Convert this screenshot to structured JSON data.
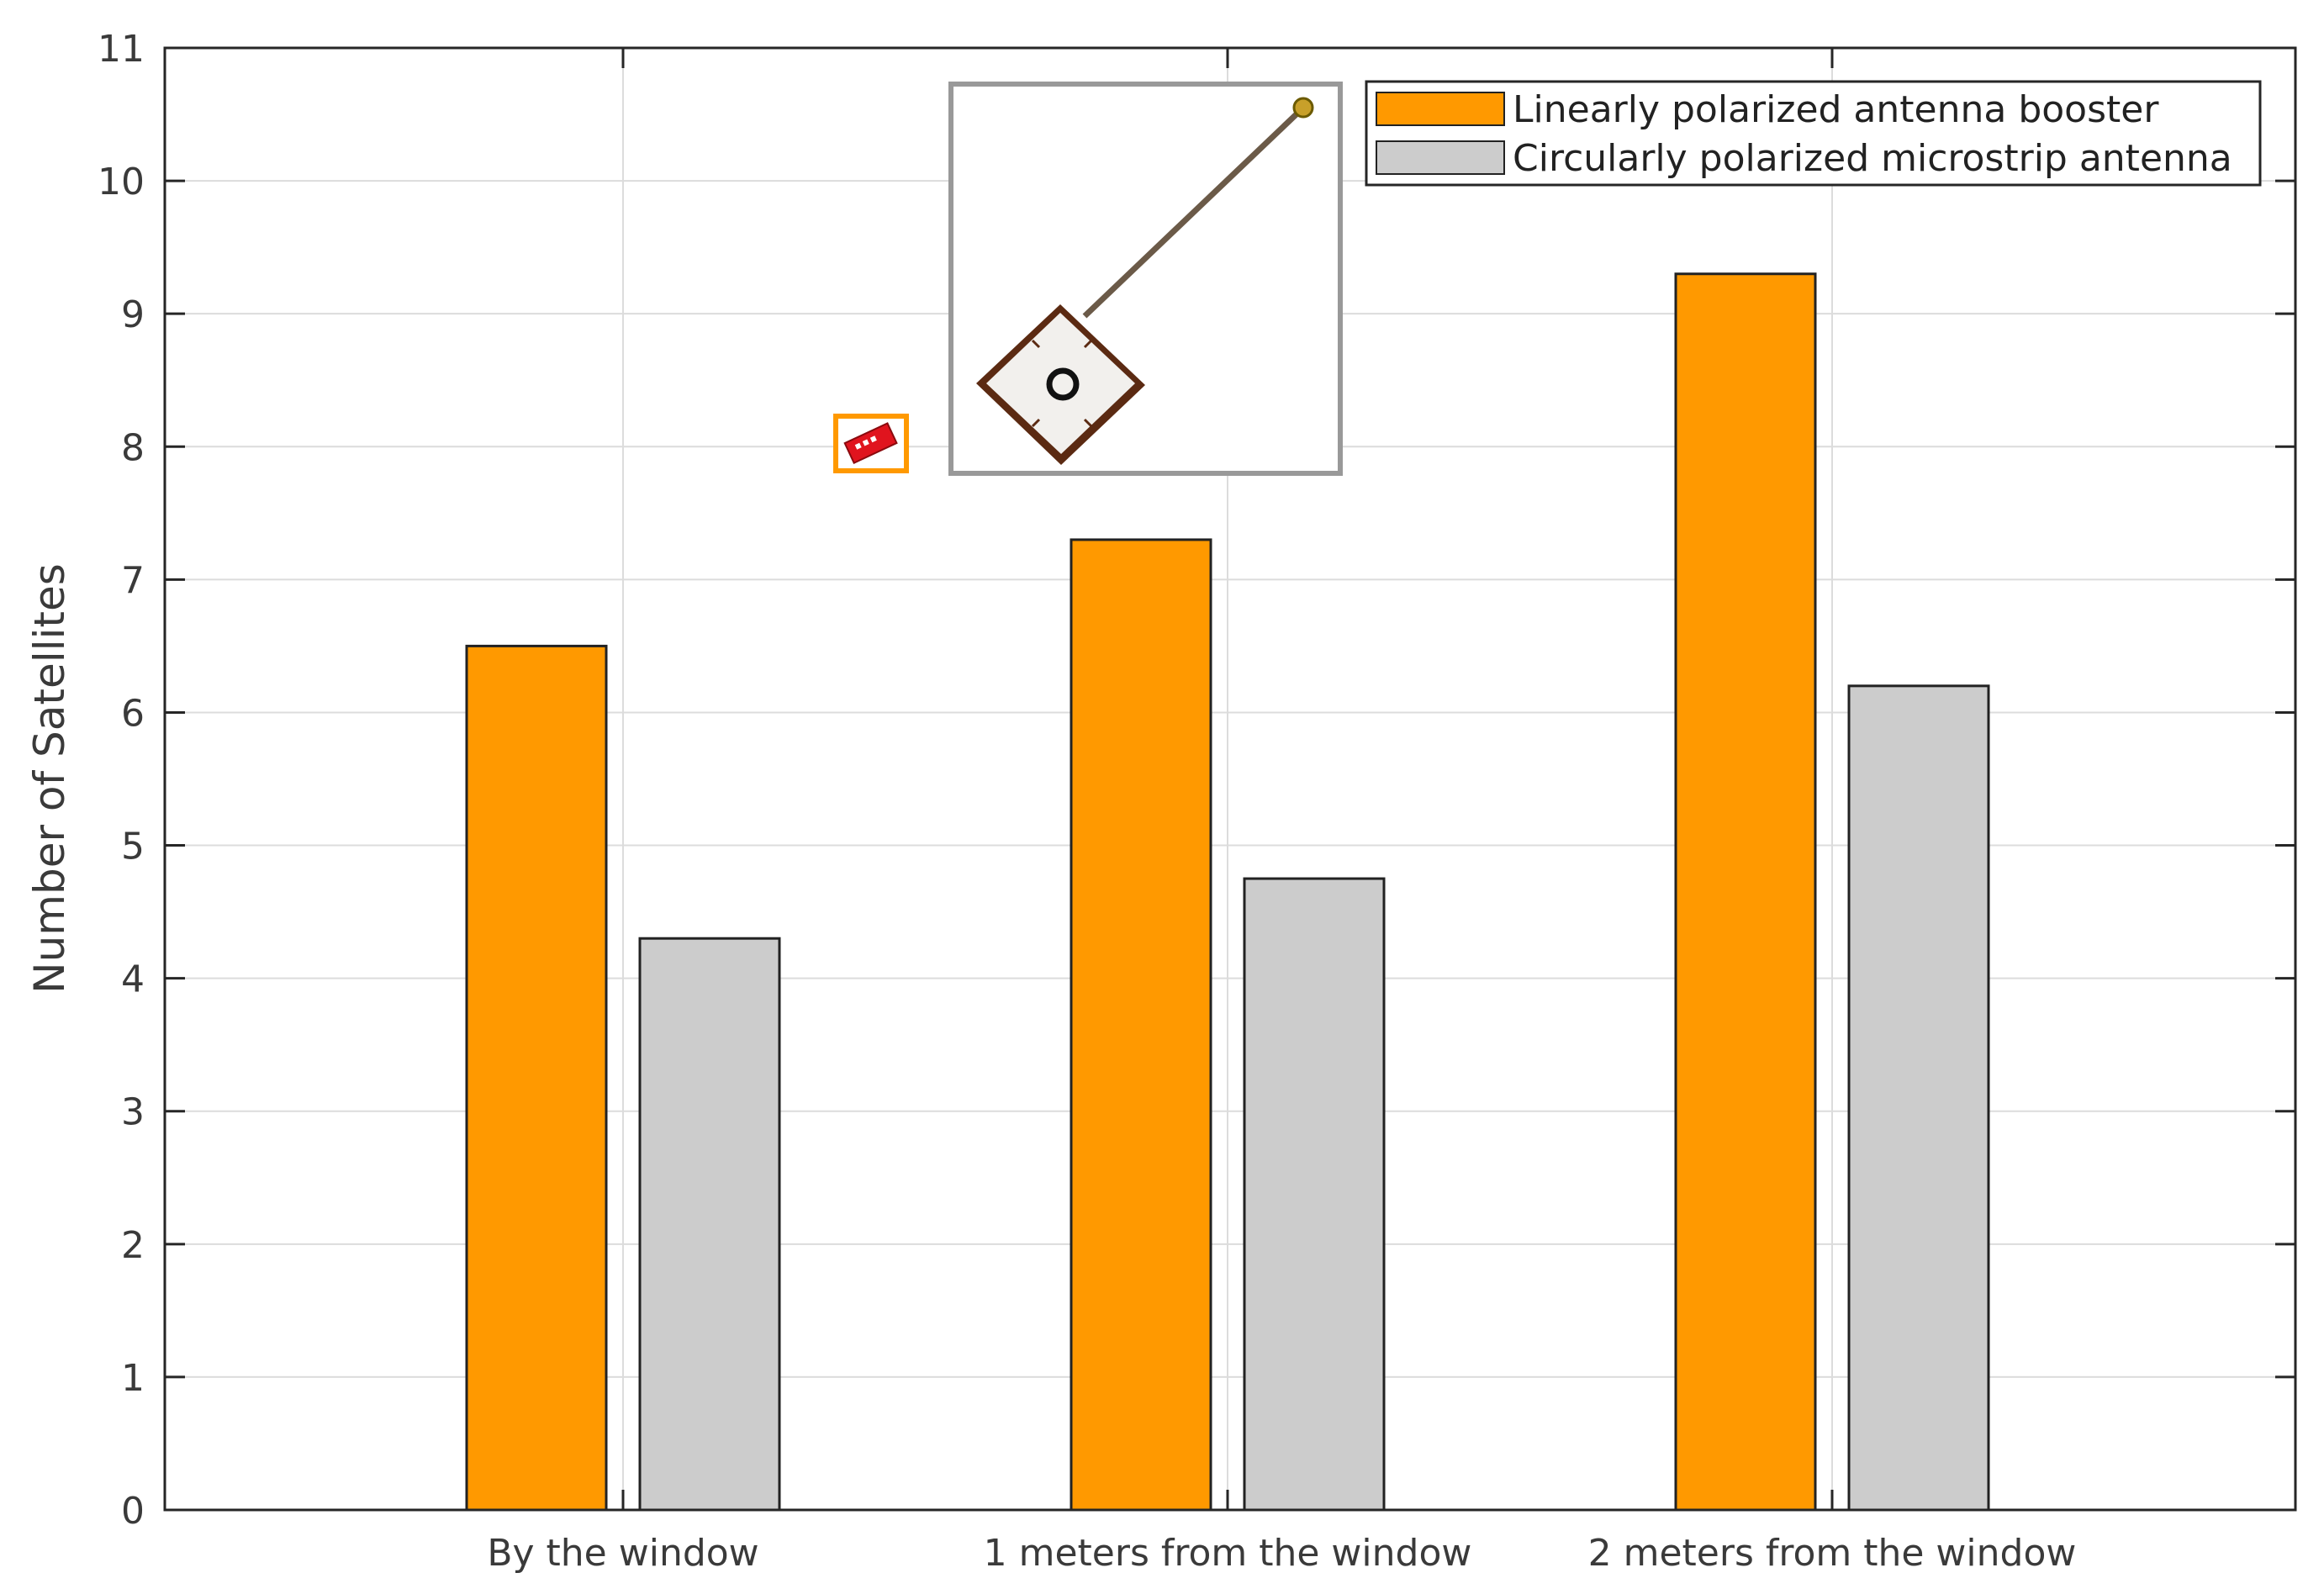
{
  "chart_data": {
    "type": "bar",
    "title": "",
    "xlabel": "",
    "ylabel": "Number of Satellites",
    "categories": [
      "By the window",
      "1 meters from the window",
      "2 meters from the window"
    ],
    "yticks": [
      "0",
      "1",
      "2",
      "3",
      "4",
      "5",
      "6",
      "7",
      "8",
      "9",
      "10",
      "11"
    ],
    "ylim": [
      0,
      11
    ],
    "grid": true,
    "legend_position": "top-right",
    "series": [
      {
        "name": "Linearly polarized antenna booster",
        "values": [
          6.5,
          7.3,
          9.3
        ],
        "color": "#ff9900"
      },
      {
        "name": "Circularly polarized microstrip antenna",
        "values": [
          4.3,
          4.75,
          6.2
        ],
        "color": "#cccccc"
      }
    ],
    "insets": [
      {
        "name": "antenna-booster-chip-icon",
        "border_color": "#ff9900"
      },
      {
        "name": "microstrip-patch-antenna-icon",
        "border_color": "#999999"
      }
    ]
  }
}
